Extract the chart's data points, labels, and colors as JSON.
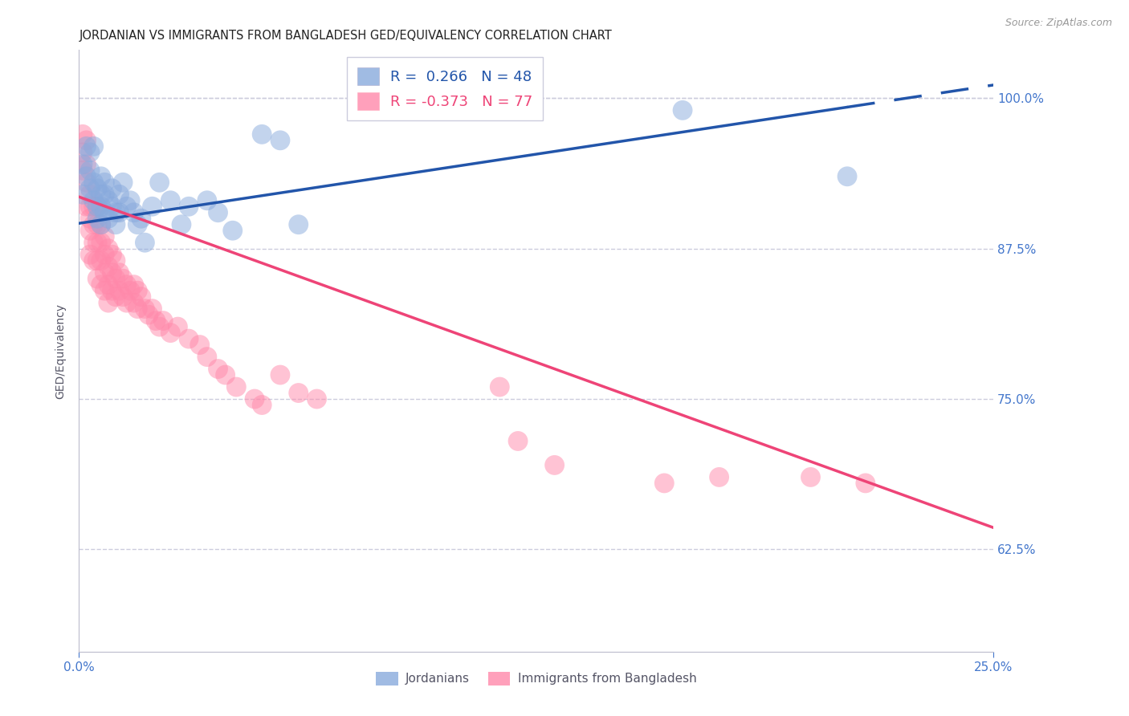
{
  "title": "JORDANIAN VS IMMIGRANTS FROM BANGLADESH GED/EQUIVALENCY CORRELATION CHART",
  "source": "Source: ZipAtlas.com",
  "ylabel": "GED/Equivalency",
  "xlim": [
    0.0,
    0.25
  ],
  "ylim": [
    0.54,
    1.04
  ],
  "yticks": [
    0.625,
    0.75,
    0.875,
    1.0
  ],
  "ytick_labels": [
    "62.5%",
    "75.0%",
    "87.5%",
    "100.0%"
  ],
  "xticks": [
    0.0,
    0.25
  ],
  "xtick_labels": [
    "0.0%",
    "25.0%"
  ],
  "legend_r_blue": "R =  0.266",
  "legend_n_blue": "N = 48",
  "legend_r_pink": "R = -0.373",
  "legend_n_pink": "N = 77",
  "blue_color": "#88AADD",
  "pink_color": "#FF88AA",
  "blue_line_color": "#2255AA",
  "pink_line_color": "#EE4477",
  "axis_color": "#4477CC",
  "grid_color": "#CCCCDD",
  "background_color": "#FFFFFF",
  "title_fontsize": 10.5,
  "label_fontsize": 10,
  "tick_fontsize": 11,
  "jordanians_x": [
    0.001,
    0.001,
    0.002,
    0.002,
    0.003,
    0.003,
    0.003,
    0.004,
    0.004,
    0.004,
    0.005,
    0.005,
    0.005,
    0.006,
    0.006,
    0.006,
    0.006,
    0.007,
    0.007,
    0.007,
    0.008,
    0.008,
    0.009,
    0.009,
    0.01,
    0.01,
    0.011,
    0.011,
    0.012,
    0.013,
    0.014,
    0.015,
    0.016,
    0.017,
    0.018,
    0.02,
    0.022,
    0.025,
    0.028,
    0.03,
    0.035,
    0.038,
    0.042,
    0.05,
    0.055,
    0.06,
    0.165,
    0.21
  ],
  "jordanians_y": [
    0.945,
    0.92,
    0.96,
    0.935,
    0.955,
    0.94,
    0.925,
    0.93,
    0.915,
    0.96,
    0.925,
    0.91,
    0.9,
    0.935,
    0.92,
    0.91,
    0.895,
    0.93,
    0.92,
    0.905,
    0.915,
    0.9,
    0.925,
    0.91,
    0.905,
    0.895,
    0.92,
    0.905,
    0.93,
    0.91,
    0.915,
    0.905,
    0.895,
    0.9,
    0.88,
    0.91,
    0.93,
    0.915,
    0.895,
    0.91,
    0.915,
    0.905,
    0.89,
    0.97,
    0.965,
    0.895,
    0.99,
    0.935
  ],
  "bangladesh_x": [
    0.001,
    0.001,
    0.001,
    0.002,
    0.002,
    0.002,
    0.002,
    0.003,
    0.003,
    0.003,
    0.003,
    0.003,
    0.004,
    0.004,
    0.004,
    0.004,
    0.005,
    0.005,
    0.005,
    0.005,
    0.005,
    0.006,
    0.006,
    0.006,
    0.006,
    0.007,
    0.007,
    0.007,
    0.007,
    0.008,
    0.008,
    0.008,
    0.008,
    0.009,
    0.009,
    0.009,
    0.01,
    0.01,
    0.01,
    0.011,
    0.011,
    0.012,
    0.012,
    0.013,
    0.013,
    0.014,
    0.015,
    0.015,
    0.016,
    0.016,
    0.017,
    0.018,
    0.019,
    0.02,
    0.021,
    0.022,
    0.023,
    0.025,
    0.027,
    0.03,
    0.033,
    0.035,
    0.038,
    0.04,
    0.043,
    0.048,
    0.05,
    0.055,
    0.06,
    0.065,
    0.115,
    0.12,
    0.13,
    0.16,
    0.175,
    0.2,
    0.215
  ],
  "bangladesh_y": [
    0.97,
    0.955,
    0.94,
    0.965,
    0.945,
    0.93,
    0.91,
    0.92,
    0.91,
    0.9,
    0.89,
    0.87,
    0.91,
    0.895,
    0.88,
    0.865,
    0.91,
    0.895,
    0.88,
    0.865,
    0.85,
    0.895,
    0.88,
    0.865,
    0.845,
    0.885,
    0.87,
    0.855,
    0.84,
    0.875,
    0.86,
    0.845,
    0.83,
    0.87,
    0.855,
    0.84,
    0.865,
    0.85,
    0.835,
    0.855,
    0.84,
    0.85,
    0.835,
    0.845,
    0.83,
    0.84,
    0.845,
    0.83,
    0.84,
    0.825,
    0.835,
    0.825,
    0.82,
    0.825,
    0.815,
    0.81,
    0.815,
    0.805,
    0.81,
    0.8,
    0.795,
    0.785,
    0.775,
    0.77,
    0.76,
    0.75,
    0.745,
    0.77,
    0.755,
    0.75,
    0.76,
    0.715,
    0.695,
    0.68,
    0.685,
    0.685,
    0.68
  ],
  "blue_line_x": [
    0.0,
    0.21,
    0.25
  ],
  "blue_line_y_intercept": 0.896,
  "blue_line_slope": 0.46,
  "pink_line_x": [
    0.0,
    0.25
  ],
  "pink_line_y_intercept": 0.918,
  "pink_line_slope": -1.1
}
